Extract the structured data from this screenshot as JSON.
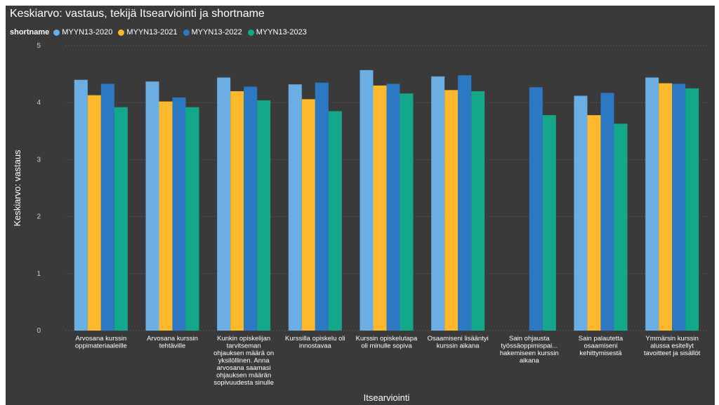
{
  "chart_data": {
    "type": "bar",
    "title": "Keskiarvo: vastaus, tekijä Itsearviointi ja shortname",
    "legend_title": "shortname",
    "xlabel": "Itsearviointi",
    "ylabel": "Keskiarvo: vastaus",
    "ylim": [
      0,
      5
    ],
    "yticks": [
      "0",
      "1",
      "2",
      "3",
      "4",
      "5"
    ],
    "grid": true,
    "legend_position": "top-left",
    "categories": [
      [
        "Arvosana kurssin",
        "oppimateriaaleille"
      ],
      [
        "Arvosana kurssin",
        "tehtäville"
      ],
      [
        "Kunkin opiskelijan",
        "tarvitseman",
        "ohjauksen määrä on",
        "yksilöllinen. Anna",
        "arvosana saamasi",
        "ohjauksen määrän",
        "sopivuudesta sinulle"
      ],
      [
        "Kurssilla opiskelu oli",
        "innostavaa"
      ],
      [
        "Kurssin opiskelutapa",
        "oli minulle sopiva"
      ],
      [
        "Osaamiseni lisääntyi",
        "kurssin aikana"
      ],
      [
        "Sain ohjausta",
        "työssäoppimispai...",
        "hakemiseen kurssin",
        "aikana"
      ],
      [
        "Sain palautetta",
        "osaamiseni",
        "kehittymisestä"
      ],
      [
        "Ymmärsin kurssin",
        "alussa esitellyt",
        "tavoitteet ja sisällöt"
      ]
    ],
    "series": [
      {
        "name": "MYYN13-2020",
        "color": "#6aaee3",
        "values": [
          4.4,
          4.37,
          4.44,
          4.32,
          4.57,
          4.46,
          null,
          4.12,
          4.44
        ]
      },
      {
        "name": "MYYN13-2021",
        "color": "#fdb92b",
        "values": [
          4.13,
          4.02,
          4.2,
          4.06,
          4.3,
          4.22,
          null,
          3.78,
          4.34
        ]
      },
      {
        "name": "MYYN13-2022",
        "color": "#2d78c2",
        "values": [
          4.33,
          4.09,
          4.28,
          4.35,
          4.33,
          4.48,
          4.27,
          4.17,
          4.33
        ]
      },
      {
        "name": "MYYN13-2023",
        "color": "#14a88a",
        "values": [
          3.92,
          3.92,
          4.04,
          3.85,
          4.16,
          4.2,
          3.78,
          3.63,
          4.25
        ]
      }
    ]
  }
}
